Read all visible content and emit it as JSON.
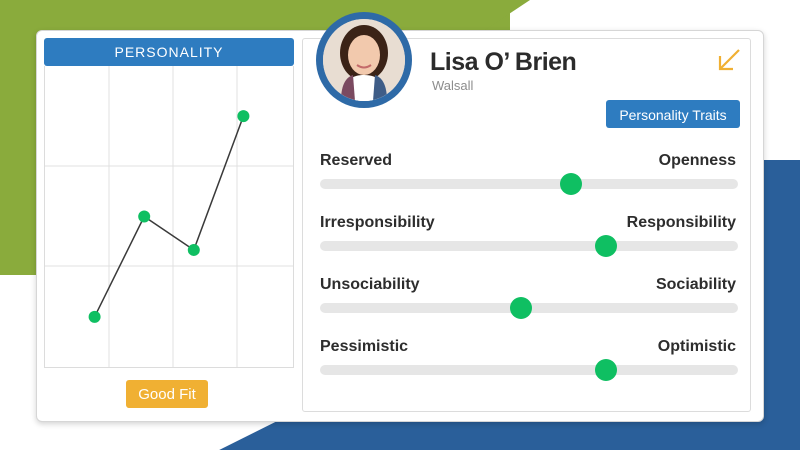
{
  "colors": {
    "accent_blue": "#2e7cc0",
    "accent_green": "#0fbf62",
    "accent_orange": "#f0b033"
  },
  "chart_panel": {
    "header": "PERSONALITY",
    "button": "Good Fit"
  },
  "chart_data": {
    "type": "line",
    "x": [
      1,
      2,
      3,
      4
    ],
    "y": [
      1.5,
      4.5,
      3.5,
      7.5
    ],
    "xlim": [
      0,
      5
    ],
    "ylim": [
      0,
      9
    ],
    "grid": true
  },
  "profile": {
    "name": "Lisa O’ Brien",
    "location": "Walsall",
    "traits_button": "Personality Traits",
    "expand_icon": "diagonal-arrow-icon"
  },
  "traits": [
    {
      "left": "Reserved",
      "right": "Openness",
      "value": 0.6
    },
    {
      "left": "Irresponsibility",
      "right": "Responsibility",
      "value": 0.685
    },
    {
      "left": "Unsociability",
      "right": "Sociability",
      "value": 0.48
    },
    {
      "left": "Pessimistic",
      "right": "Optimistic",
      "value": 0.685
    }
  ]
}
